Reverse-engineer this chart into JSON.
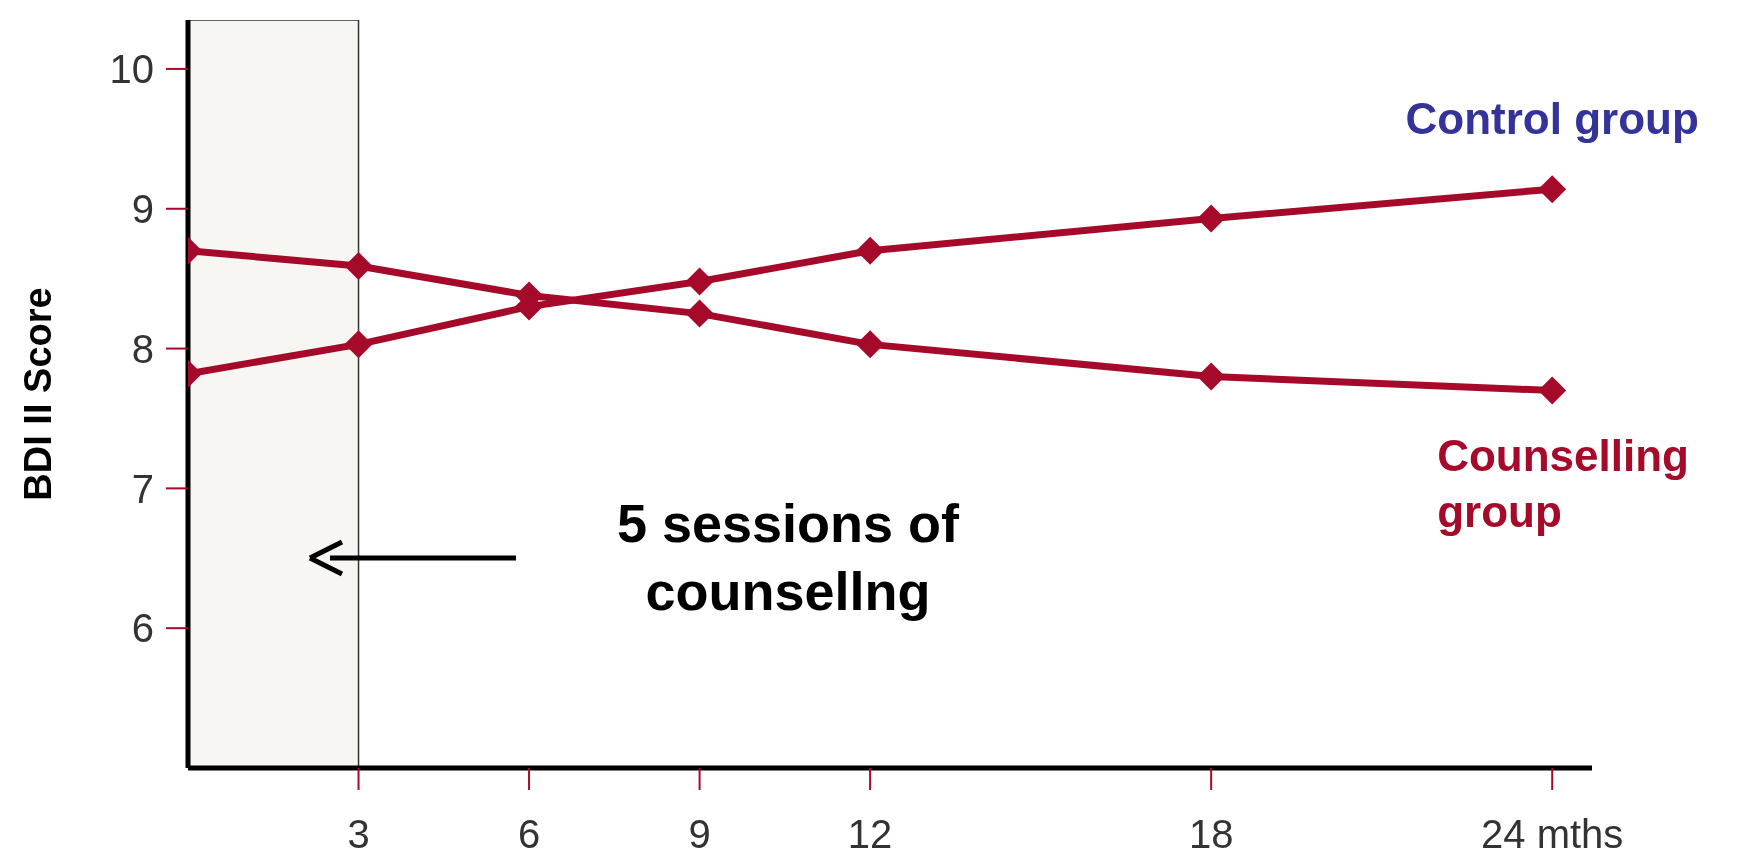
{
  "chart_data": {
    "type": "line",
    "ylabel": "BDI II Score",
    "x": [
      0,
      3,
      6,
      9,
      12,
      18,
      24
    ],
    "series": [
      {
        "name": "Control group",
        "color": "#a50a2a",
        "values": [
          7.82,
          8.03,
          8.3,
          8.48,
          8.7,
          8.93,
          9.14
        ]
      },
      {
        "name": "Counselling group",
        "color": "#a50a2a",
        "values": [
          8.7,
          8.59,
          8.38,
          8.25,
          8.03,
          7.8,
          7.7
        ]
      }
    ],
    "xlim": [
      0,
      24.7
    ],
    "xticks": [
      3,
      6,
      9,
      12,
      18,
      {
        "value": 24,
        "label": "24 mths"
      }
    ],
    "ylim": [
      5,
      10.35
    ],
    "yticks": [
      6,
      7,
      8,
      9,
      10
    ],
    "bands": [
      {
        "axis": "x",
        "from": 0,
        "to": 3,
        "color": "#f7f6f2"
      }
    ],
    "annotations": [
      "5 sessions of counsellng"
    ],
    "grid": false,
    "legend": false,
    "marker": "diamond",
    "line_style": "solid"
  }
}
